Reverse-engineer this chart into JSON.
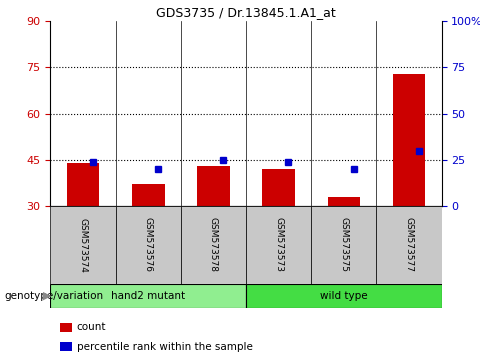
{
  "title": "GDS3735 / Dr.13845.1.A1_at",
  "samples": [
    "GSM573574",
    "GSM573576",
    "GSM573578",
    "GSM573573",
    "GSM573575",
    "GSM573577"
  ],
  "count_values": [
    44,
    37,
    43,
    42,
    33,
    73
  ],
  "percentile_values": [
    24,
    20,
    25,
    24,
    20,
    30
  ],
  "groups": [
    {
      "label": "hand2 mutant",
      "indices": [
        0,
        1,
        2
      ],
      "color": "#90EE90"
    },
    {
      "label": "wild type",
      "indices": [
        3,
        4,
        5
      ],
      "color": "#44DD44"
    }
  ],
  "ylim_left": [
    30,
    90
  ],
  "ylim_right": [
    0,
    100
  ],
  "yticks_left": [
    30,
    45,
    60,
    75,
    90
  ],
  "yticks_right": [
    0,
    25,
    50,
    75,
    100
  ],
  "ytick_labels_right": [
    "0",
    "25",
    "50",
    "75",
    "100%"
  ],
  "hlines": [
    45,
    60,
    75
  ],
  "bar_color": "#CC0000",
  "marker_color": "#0000CC",
  "left_tick_color": "#CC0000",
  "right_tick_color": "#0000CC",
  "legend_items": [
    {
      "label": "count",
      "color": "#CC0000"
    },
    {
      "label": "percentile rank within the sample",
      "color": "#0000CC"
    }
  ],
  "group_label": "genotype/variation",
  "background_plot": "#FFFFFF",
  "background_sample": "#C8C8C8",
  "bar_width": 0.5
}
